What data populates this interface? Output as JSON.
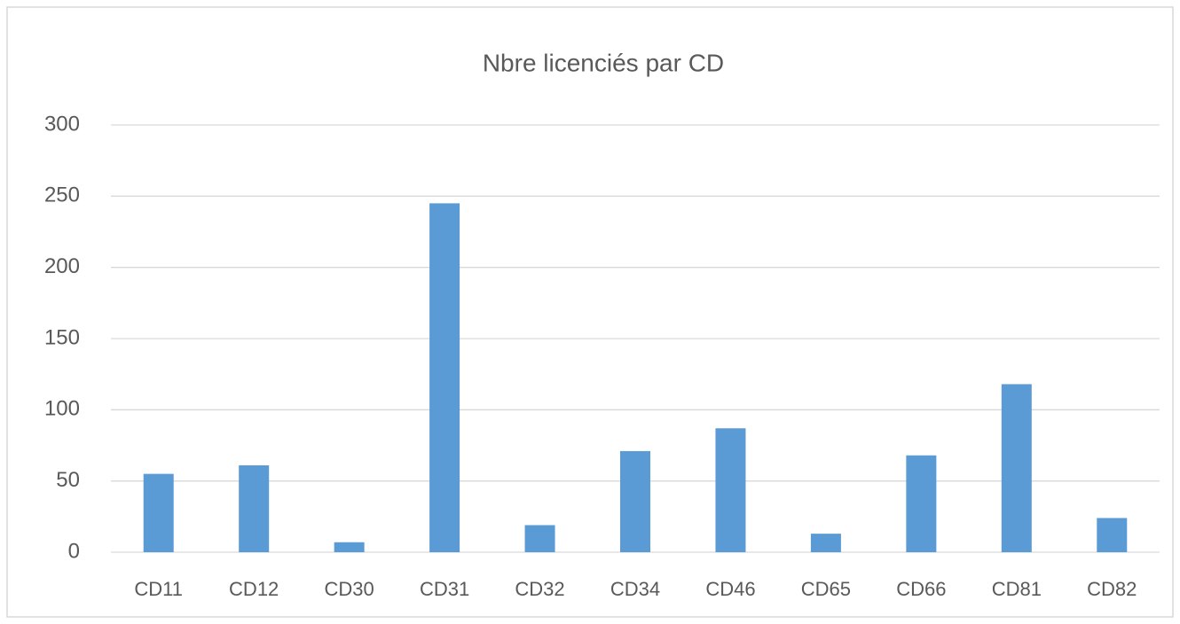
{
  "chart_data": {
    "type": "bar",
    "title": "Nbre licenciés par CD",
    "categories": [
      "CD11",
      "CD12",
      "CD30",
      "CD31",
      "CD32",
      "CD34",
      "CD46",
      "CD65",
      "CD66",
      "CD81",
      "CD82"
    ],
    "values": [
      55,
      61,
      7,
      245,
      19,
      71,
      87,
      13,
      68,
      118,
      24
    ],
    "color": "#5b9bd5",
    "ylim": [
      0,
      300
    ],
    "yticks": [
      0,
      50,
      100,
      150,
      200,
      250,
      300
    ],
    "grid": true
  }
}
